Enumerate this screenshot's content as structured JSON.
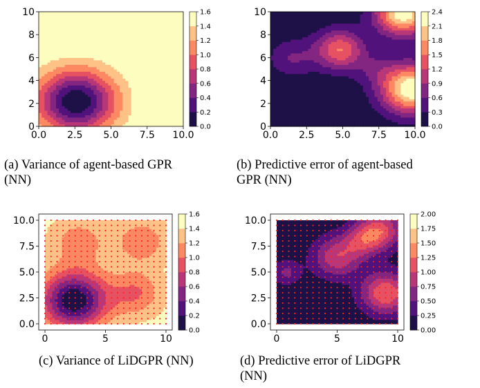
{
  "colormap": [
    "#000004",
    "#1d1147",
    "#51127c",
    "#822681",
    "#b73779",
    "#e75263",
    "#fc8961",
    "#fec287",
    "#fcfdbf"
  ],
  "point_color": "#ff2020",
  "chart_data": [
    {
      "id": "a",
      "type": "heatmap",
      "title": "",
      "xlabel": "",
      "ylabel": "",
      "xlim": [
        0,
        10
      ],
      "ylim": [
        0,
        10
      ],
      "xticks": [
        "0.0",
        "2.5",
        "5.0",
        "7.5",
        "10.0"
      ],
      "yticks": [
        "0",
        "2",
        "4",
        "6",
        "8",
        "10"
      ],
      "colorbar": {
        "min": 0,
        "max": 1.6,
        "ticks": [
          "0.0",
          "0.2",
          "0.4",
          "0.6",
          "0.8",
          "1.0",
          "1.2",
          "1.4",
          "1.6"
        ]
      },
      "field": {
        "base": 1.6,
        "blobs": [
          {
            "x": 2.6,
            "y": 2.2,
            "r": 2.7,
            "amp": -1.6
          }
        ]
      },
      "points": null
    },
    {
      "id": "b",
      "type": "heatmap",
      "title": "",
      "xlabel": "",
      "ylabel": "",
      "xlim": [
        0,
        10
      ],
      "ylim": [
        0,
        10
      ],
      "xticks": [
        "0.0",
        "2.5",
        "5.0",
        "7.5",
        "10.0"
      ],
      "yticks": [
        "0",
        "2",
        "4",
        "6",
        "8",
        "10"
      ],
      "colorbar": {
        "min": 0,
        "max": 2.4,
        "ticks": [
          "0.0",
          "0.3",
          "0.6",
          "0.9",
          "1.2",
          "1.5",
          "1.8",
          "2.1",
          "2.4"
        ]
      },
      "field": {
        "base": 0.05,
        "blobs": [
          {
            "x": 4.8,
            "y": 6.7,
            "r": 1.7,
            "amp": 1.45
          },
          {
            "x": 9.8,
            "y": 3.3,
            "r": 2.1,
            "amp": 2.4
          },
          {
            "x": 9.2,
            "y": 9.9,
            "r": 1.9,
            "amp": 2.3
          },
          {
            "x": 1.5,
            "y": 6.0,
            "r": 1.6,
            "amp": 0.55
          },
          {
            "x": 7.3,
            "y": 5.0,
            "r": 1.4,
            "amp": 0.4
          }
        ]
      },
      "points": null
    },
    {
      "id": "c",
      "type": "heatmap",
      "title": "",
      "xlabel": "",
      "ylabel": "",
      "xlim": [
        0,
        10
      ],
      "ylim": [
        0,
        10
      ],
      "xticks": [
        "0",
        "5",
        "10"
      ],
      "yticks": [
        "0.0",
        "2.5",
        "5.0",
        "7.5",
        "10.0"
      ],
      "colorbar": {
        "min": 0,
        "max": 1.6,
        "ticks": [
          "0.0",
          "0.2",
          "0.4",
          "0.6",
          "0.8",
          "1.0",
          "1.2",
          "1.4",
          "1.6"
        ]
      },
      "field": {
        "base": 1.5,
        "blobs": [
          {
            "x": 2.4,
            "y": 2.3,
            "r": 2.7,
            "amp": -1.5
          },
          {
            "x": 7.5,
            "y": 3.0,
            "r": 2.2,
            "amp": -0.5
          },
          {
            "x": 8.0,
            "y": 8.0,
            "r": 2.2,
            "amp": -0.45
          },
          {
            "x": 2.8,
            "y": 8.0,
            "r": 2.4,
            "amp": -0.4
          }
        ]
      },
      "points": {
        "x_start": 0,
        "x_end": 10,
        "y_start": 0,
        "y_end": 10,
        "step": 0.5
      }
    },
    {
      "id": "d",
      "type": "heatmap",
      "title": "",
      "xlabel": "",
      "ylabel": "",
      "xlim": [
        0,
        10
      ],
      "ylim": [
        0,
        10
      ],
      "xticks": [
        "0",
        "5",
        "10"
      ],
      "yticks": [
        "0.0",
        "2.5",
        "5.0",
        "7.5",
        "10.0"
      ],
      "colorbar": {
        "min": 0,
        "max": 2.0,
        "ticks": [
          "0.00",
          "0.25",
          "0.50",
          "0.75",
          "1.00",
          "1.25",
          "1.50",
          "1.75",
          "2.00"
        ]
      },
      "field": {
        "base": 0.05,
        "blobs": [
          {
            "x": 5.0,
            "y": 6.5,
            "r": 2.0,
            "amp": 0.9
          },
          {
            "x": 9.0,
            "y": 3.0,
            "r": 2.0,
            "amp": 1.2
          },
          {
            "x": 8.5,
            "y": 9.0,
            "r": 1.8,
            "amp": 1.1
          },
          {
            "x": 0.8,
            "y": 5.0,
            "r": 1.2,
            "amp": 0.5
          },
          {
            "x": 7.0,
            "y": 8.0,
            "r": 1.5,
            "amp": 0.6
          }
        ]
      },
      "points": {
        "x_start": 0,
        "x_end": 10,
        "y_start": 0,
        "y_end": 10,
        "step": 0.5
      }
    }
  ],
  "captions": {
    "a": [
      "(a) Variance of agent-based GPR",
      "(NN)"
    ],
    "b": [
      "(b) Predictive error of agent-based",
      "GPR (NN)"
    ],
    "c": [
      "(c) Variance of LiDGPR (NN)"
    ],
    "d": [
      "(d) Predictive error of LiDGPR",
      "(NN)"
    ]
  }
}
